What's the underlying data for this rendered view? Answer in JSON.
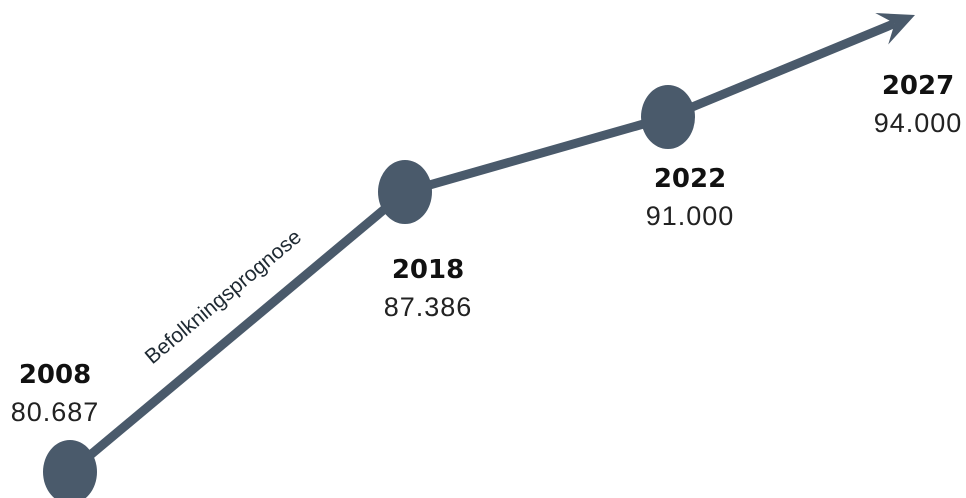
{
  "chart_data": {
    "type": "line",
    "series_label": "Befolkningsprognose",
    "points": [
      {
        "year": "2008",
        "value_label": "80.687",
        "value": 80687,
        "marker": true
      },
      {
        "year": "2018",
        "value_label": "87.386",
        "value": 87386,
        "marker": true
      },
      {
        "year": "2022",
        "value_label": "91.000",
        "value": 91000,
        "marker": true
      },
      {
        "year": "2027",
        "value_label": "94.000",
        "value": 94000,
        "marker": false
      }
    ],
    "line_color": "#4a5a6b",
    "marker_color": "#4a5a6b",
    "end": "arrow"
  }
}
